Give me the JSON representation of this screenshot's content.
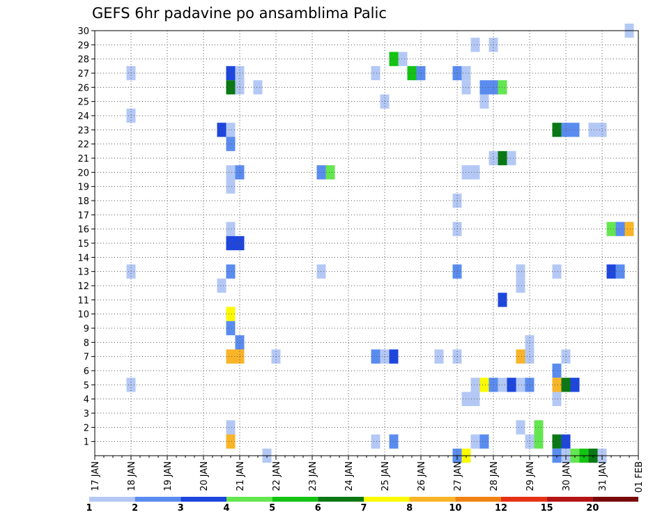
{
  "chart_data": {
    "type": "heatmap",
    "title": "GEFS 6hr padavine po ansamblima Palic",
    "x_ticks": [
      "17 JAN",
      "18 JAN",
      "19 JAN",
      "20 JAN",
      "21 JAN",
      "22 JAN",
      "23 JAN",
      "24 JAN",
      "25 JAN",
      "26 JAN",
      "27 JAN",
      "28 JAN",
      "29 JAN",
      "30 JAN",
      "31 JAN",
      "01 FEB"
    ],
    "y_ticks": [
      "1",
      "2",
      "3",
      "4",
      "5",
      "6",
      "7",
      "8",
      "9",
      "10",
      "11",
      "12",
      "13",
      "14",
      "15",
      "16",
      "17",
      "18",
      "19",
      "20",
      "21",
      "22",
      "23",
      "24",
      "25",
      "26",
      "27",
      "28",
      "29",
      "30"
    ],
    "grid": true,
    "colorbar": {
      "labels": [
        "1",
        "2",
        "3",
        "4",
        "5",
        "6",
        "7",
        "8",
        "10",
        "12",
        "15",
        "20"
      ],
      "colors": [
        "#b4c8f5",
        "#5a8cf0",
        "#1e46dc",
        "#64e650",
        "#14c314",
        "#0a7814",
        "#fafa00",
        "#fab428",
        "#f08214",
        "#e63214",
        "#b41414",
        "#780a0a"
      ]
    },
    "cells": [
      {
        "d": 18.0,
        "m": 27,
        "v": 1
      },
      {
        "d": 18.0,
        "m": 24,
        "v": 1
      },
      {
        "d": 18.0,
        "m": 13,
        "v": 1
      },
      {
        "d": 18.0,
        "m": 5,
        "v": 1
      },
      {
        "d": 20.5,
        "m": 23,
        "v": 3
      },
      {
        "d": 20.5,
        "m": 12,
        "v": 1
      },
      {
        "d": 20.75,
        "m": 27,
        "v": 3
      },
      {
        "d": 20.75,
        "m": 26,
        "v": 6
      },
      {
        "d": 20.75,
        "m": 23,
        "v": 1
      },
      {
        "d": 20.75,
        "m": 22,
        "v": 2
      },
      {
        "d": 20.75,
        "m": 20,
        "v": 1
      },
      {
        "d": 20.75,
        "m": 19,
        "v": 1
      },
      {
        "d": 20.75,
        "m": 16,
        "v": 1
      },
      {
        "d": 20.75,
        "m": 15,
        "v": 3
      },
      {
        "d": 20.75,
        "m": 13,
        "v": 2
      },
      {
        "d": 20.75,
        "m": 10,
        "v": 7
      },
      {
        "d": 20.75,
        "m": 9,
        "v": 2
      },
      {
        "d": 20.75,
        "m": 7,
        "v": 8
      },
      {
        "d": 20.75,
        "m": 2,
        "v": 1
      },
      {
        "d": 20.75,
        "m": 1,
        "v": 8
      },
      {
        "d": 21.0,
        "m": 27,
        "v": 1
      },
      {
        "d": 21.0,
        "m": 26,
        "v": 1
      },
      {
        "d": 21.0,
        "m": 20,
        "v": 2
      },
      {
        "d": 21.0,
        "m": 15,
        "v": 3
      },
      {
        "d": 21.0,
        "m": 8,
        "v": 2
      },
      {
        "d": 21.0,
        "m": 7,
        "v": 8
      },
      {
        "d": 21.5,
        "m": 26,
        "v": 1
      },
      {
        "d": 21.75,
        "m": 0,
        "v": 1
      },
      {
        "d": 22.0,
        "m": 7,
        "v": 1
      },
      {
        "d": 23.25,
        "m": 20,
        "v": 2
      },
      {
        "d": 23.25,
        "m": 13,
        "v": 1
      },
      {
        "d": 23.5,
        "m": 20,
        "v": 4
      },
      {
        "d": 24.75,
        "m": 27,
        "v": 1
      },
      {
        "d": 24.75,
        "m": 7,
        "v": 2
      },
      {
        "d": 24.75,
        "m": 1,
        "v": 1
      },
      {
        "d": 25.0,
        "m": 25,
        "v": 1
      },
      {
        "d": 25.0,
        "m": 7,
        "v": 1
      },
      {
        "d": 25.25,
        "m": 28,
        "v": 5
      },
      {
        "d": 25.25,
        "m": 7,
        "v": 3
      },
      {
        "d": 25.25,
        "m": 1,
        "v": 2
      },
      {
        "d": 25.5,
        "m": 28,
        "v": 1
      },
      {
        "d": 25.75,
        "m": 27,
        "v": 5
      },
      {
        "d": 26.0,
        "m": 27,
        "v": 2
      },
      {
        "d": 26.5,
        "m": 7,
        "v": 1
      },
      {
        "d": 27.0,
        "m": 27,
        "v": 2
      },
      {
        "d": 27.0,
        "m": 18,
        "v": 1
      },
      {
        "d": 27.0,
        "m": 16,
        "v": 1
      },
      {
        "d": 27.0,
        "m": 13,
        "v": 2
      },
      {
        "d": 27.0,
        "m": 7,
        "v": 1
      },
      {
        "d": 27.0,
        "m": 0,
        "v": 2
      },
      {
        "d": 27.25,
        "m": 27,
        "v": 1
      },
      {
        "d": 27.25,
        "m": 26,
        "v": 1
      },
      {
        "d": 27.25,
        "m": 20,
        "v": 1
      },
      {
        "d": 27.25,
        "m": 4,
        "v": 1
      },
      {
        "d": 27.25,
        "m": 0,
        "v": 7
      },
      {
        "d": 27.5,
        "m": 29,
        "v": 1
      },
      {
        "d": 27.5,
        "m": 20,
        "v": 1
      },
      {
        "d": 27.5,
        "m": 5,
        "v": 1
      },
      {
        "d": 27.5,
        "m": 4,
        "v": 1
      },
      {
        "d": 27.5,
        "m": 1,
        "v": 1
      },
      {
        "d": 27.75,
        "m": 26,
        "v": 2
      },
      {
        "d": 27.75,
        "m": 25,
        "v": 1
      },
      {
        "d": 27.75,
        "m": 5,
        "v": 7
      },
      {
        "d": 27.75,
        "m": 1,
        "v": 2
      },
      {
        "d": 28.0,
        "m": 29,
        "v": 1
      },
      {
        "d": 28.0,
        "m": 26,
        "v": 2
      },
      {
        "d": 28.0,
        "m": 21,
        "v": 1
      },
      {
        "d": 28.0,
        "m": 5,
        "v": 2
      },
      {
        "d": 28.25,
        "m": 26,
        "v": 4
      },
      {
        "d": 28.25,
        "m": 21,
        "v": 6
      },
      {
        "d": 28.25,
        "m": 11,
        "v": 3
      },
      {
        "d": 28.25,
        "m": 5,
        "v": 1
      },
      {
        "d": 28.5,
        "m": 21,
        "v": 1
      },
      {
        "d": 28.5,
        "m": 5,
        "v": 3
      },
      {
        "d": 28.75,
        "m": 13,
        "v": 1
      },
      {
        "d": 28.75,
        "m": 12,
        "v": 1
      },
      {
        "d": 28.75,
        "m": 7,
        "v": 8
      },
      {
        "d": 28.75,
        "m": 5,
        "v": 1
      },
      {
        "d": 28.75,
        "m": 2,
        "v": 1
      },
      {
        "d": 29.0,
        "m": 8,
        "v": 1
      },
      {
        "d": 29.0,
        "m": 7,
        "v": 1
      },
      {
        "d": 29.0,
        "m": 5,
        "v": 2
      },
      {
        "d": 29.0,
        "m": 1,
        "v": 1
      },
      {
        "d": 29.25,
        "m": 2,
        "v": 4
      },
      {
        "d": 29.25,
        "m": 1,
        "v": 4
      },
      {
        "d": 29.75,
        "m": 23,
        "v": 6
      },
      {
        "d": 29.75,
        "m": 13,
        "v": 1
      },
      {
        "d": 29.75,
        "m": 6,
        "v": 2
      },
      {
        "d": 29.75,
        "m": 5,
        "v": 8
      },
      {
        "d": 29.75,
        "m": 4,
        "v": 1
      },
      {
        "d": 29.75,
        "m": 1,
        "v": 6
      },
      {
        "d": 29.75,
        "m": 0,
        "v": 2
      },
      {
        "d": 30.0,
        "m": 23,
        "v": 2
      },
      {
        "d": 30.0,
        "m": 7,
        "v": 1
      },
      {
        "d": 30.0,
        "m": 5,
        "v": 6
      },
      {
        "d": 30.0,
        "m": 1,
        "v": 3
      },
      {
        "d": 30.0,
        "m": 0,
        "v": 1
      },
      {
        "d": 30.25,
        "m": 23,
        "v": 2
      },
      {
        "d": 30.25,
        "m": 5,
        "v": 3
      },
      {
        "d": 30.25,
        "m": 0,
        "v": 4
      },
      {
        "d": 30.5,
        "m": 0,
        "v": 5
      },
      {
        "d": 30.75,
        "m": 23,
        "v": 1
      },
      {
        "d": 30.75,
        "m": 0,
        "v": 6
      },
      {
        "d": 31.0,
        "m": 23,
        "v": 1
      },
      {
        "d": 31.0,
        "m": 0,
        "v": 1
      },
      {
        "d": 31.25,
        "m": 16,
        "v": 4
      },
      {
        "d": 31.25,
        "m": 13,
        "v": 3
      },
      {
        "d": 31.5,
        "m": 16,
        "v": 2
      },
      {
        "d": 31.5,
        "m": 13,
        "v": 2
      },
      {
        "d": 31.75,
        "m": 30,
        "v": 1
      },
      {
        "d": 31.75,
        "m": 16,
        "v": 8
      }
    ]
  }
}
